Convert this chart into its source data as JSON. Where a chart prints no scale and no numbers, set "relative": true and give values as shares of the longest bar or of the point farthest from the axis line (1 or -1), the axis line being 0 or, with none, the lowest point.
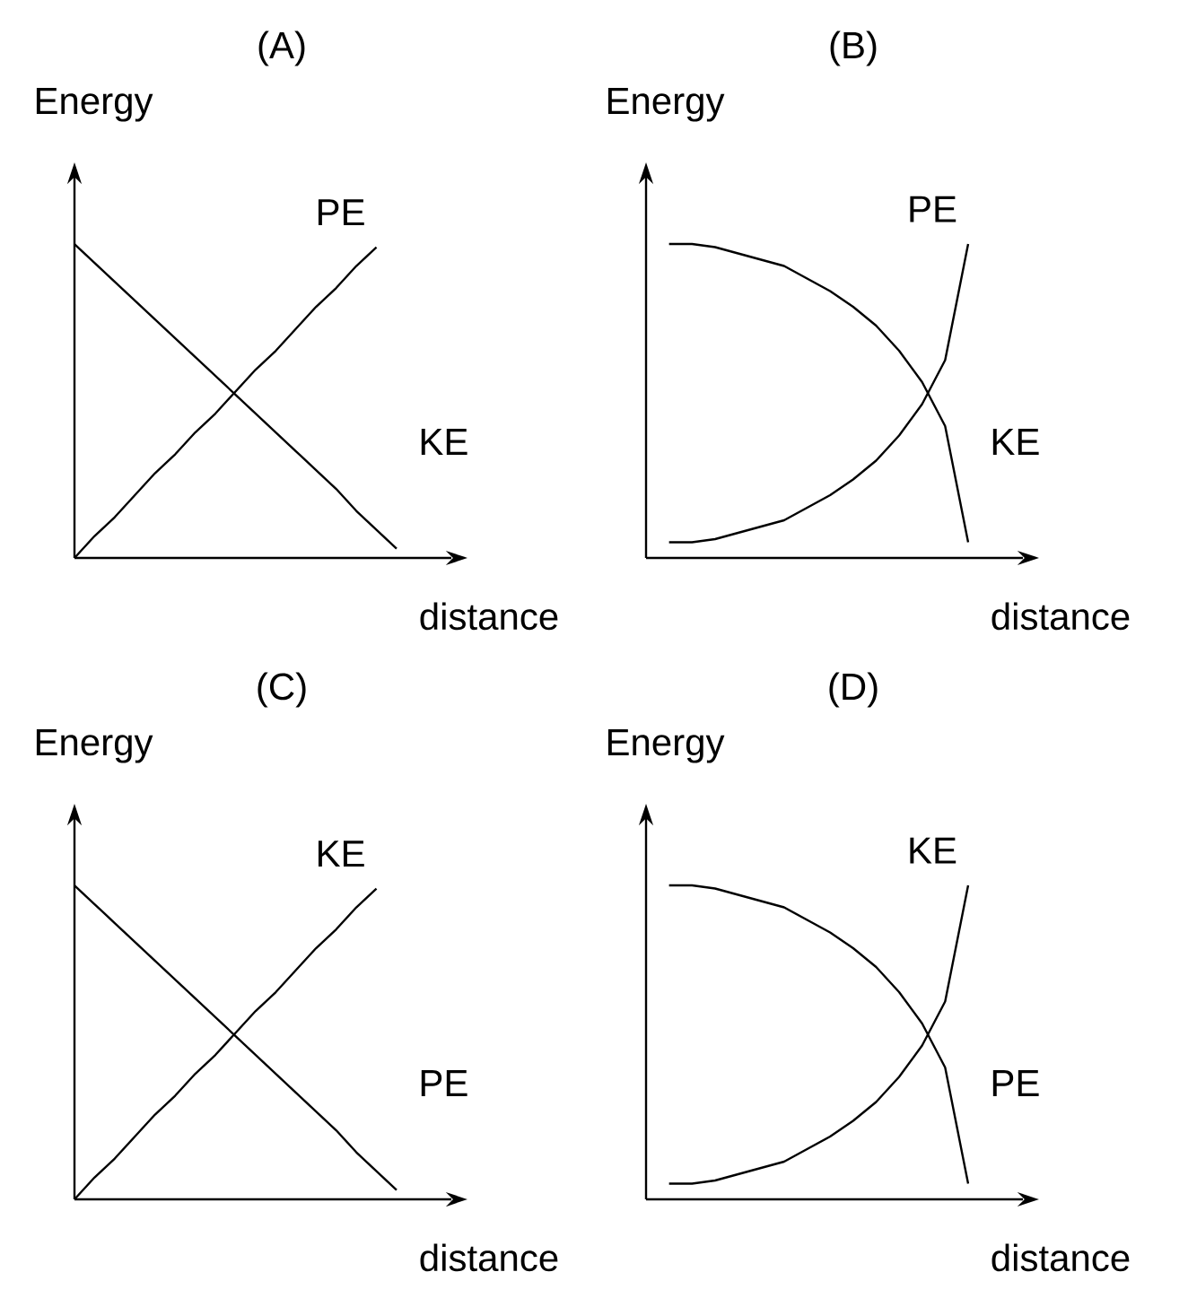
{
  "chart_data": [
    {
      "type": "line",
      "title": "(A)",
      "xlabel": "distance",
      "ylabel": "Energy",
      "relative": true,
      "categories": [
        null,
        null,
        null,
        null,
        null,
        null,
        null,
        null,
        null,
        null,
        null,
        null,
        null,
        null,
        null,
        null,
        null
      ],
      "series": [
        {
          "name": "PE",
          "color": "#000000",
          "values": [
            0,
            0.07,
            0.13,
            0.2,
            0.27,
            0.33,
            0.4,
            0.46,
            0.53,
            0.6,
            0.66,
            0.73,
            0.8,
            0.86,
            0.93,
            0.99,
            null
          ]
        },
        {
          "name": "KE",
          "color": "#000000",
          "values": [
            1.0,
            0.94,
            0.88,
            0.82,
            0.76,
            0.7,
            0.64,
            0.58,
            0.52,
            0.46,
            0.4,
            0.34,
            0.28,
            0.22,
            0.15,
            0.09,
            0.03
          ]
        }
      ]
    },
    {
      "type": "line",
      "title": "(B)",
      "xlabel": "distance",
      "ylabel": "Energy",
      "relative": true,
      "categories": [
        null,
        null,
        null,
        null,
        null,
        null,
        null,
        null,
        null,
        null,
        null,
        null,
        null,
        null,
        null
      ],
      "series": [
        {
          "name": "PE",
          "color": "#000000",
          "values": [
            null,
            0.05,
            0.05,
            0.06,
            0.08,
            0.1,
            0.12,
            0.16,
            0.2,
            0.25,
            0.31,
            0.39,
            0.49,
            0.63,
            1.0
          ]
        },
        {
          "name": "KE",
          "color": "#000000",
          "values": [
            null,
            1.0,
            1.0,
            0.99,
            0.97,
            0.95,
            0.93,
            0.89,
            0.85,
            0.8,
            0.74,
            0.66,
            0.56,
            0.42,
            0.05
          ]
        }
      ]
    },
    {
      "type": "line",
      "title": "(C)",
      "xlabel": "distance",
      "ylabel": "Energy",
      "relative": true,
      "categories": [
        null,
        null,
        null,
        null,
        null,
        null,
        null,
        null,
        null,
        null,
        null,
        null,
        null,
        null,
        null,
        null,
        null
      ],
      "series": [
        {
          "name": "KE",
          "color": "#000000",
          "values": [
            0,
            0.07,
            0.13,
            0.2,
            0.27,
            0.33,
            0.4,
            0.46,
            0.53,
            0.6,
            0.66,
            0.73,
            0.8,
            0.86,
            0.93,
            0.99,
            null
          ]
        },
        {
          "name": "PE",
          "color": "#000000",
          "values": [
            1.0,
            0.94,
            0.88,
            0.82,
            0.76,
            0.7,
            0.64,
            0.58,
            0.52,
            0.46,
            0.4,
            0.34,
            0.28,
            0.22,
            0.15,
            0.09,
            0.03
          ]
        }
      ]
    },
    {
      "type": "line",
      "title": "(D)",
      "xlabel": "distance",
      "ylabel": "Energy",
      "relative": true,
      "categories": [
        null,
        null,
        null,
        null,
        null,
        null,
        null,
        null,
        null,
        null,
        null,
        null,
        null,
        null,
        null
      ],
      "series": [
        {
          "name": "KE",
          "color": "#000000",
          "values": [
            null,
            0.05,
            0.05,
            0.06,
            0.08,
            0.1,
            0.12,
            0.16,
            0.2,
            0.25,
            0.31,
            0.39,
            0.49,
            0.63,
            1.0
          ]
        },
        {
          "name": "PE",
          "color": "#000000",
          "values": [
            null,
            1.0,
            1.0,
            0.99,
            0.97,
            0.95,
            0.93,
            0.89,
            0.85,
            0.8,
            0.74,
            0.66,
            0.56,
            0.42,
            0.05
          ]
        }
      ]
    }
  ]
}
